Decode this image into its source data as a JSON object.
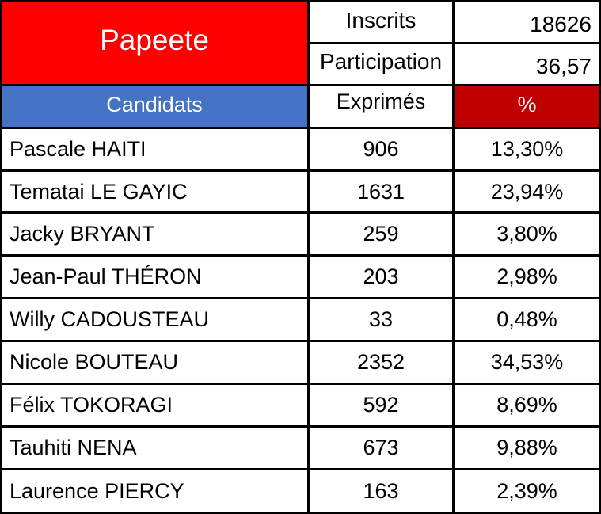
{
  "header": {
    "city": "Papeete",
    "inscrits_label": "Inscrits",
    "inscrits_value": "18626",
    "participation_label": "Participation",
    "participation_value": "36,57"
  },
  "columns": {
    "candidats": "Candidats",
    "exprimes": "Exprimés",
    "percent": "%"
  },
  "rows": [
    {
      "name": "Pascale HAITI",
      "exprimes": "906",
      "percent": "13,30%"
    },
    {
      "name": "Tematai LE GAYIC",
      "exprimes": "1631",
      "percent": "23,94%"
    },
    {
      "name": "Jacky BRYANT",
      "exprimes": "259",
      "percent": "3,80%"
    },
    {
      "name": "Jean-Paul THÉRON",
      "exprimes": "203",
      "percent": "2,98%"
    },
    {
      "name": "Willy CADOUSTEAU",
      "exprimes": "33",
      "percent": "0,48%"
    },
    {
      "name": "Nicole BOUTEAU",
      "exprimes": "2352",
      "percent": "34,53%"
    },
    {
      "name": "Félix TOKORAGI",
      "exprimes": "592",
      "percent": "8,69%"
    },
    {
      "name": "Tauhiti NENA",
      "exprimes": "673",
      "percent": "9,88%"
    },
    {
      "name": "Laurence PIERCY",
      "exprimes": "163",
      "percent": "2,39%"
    }
  ],
  "colors": {
    "title_bg": "#ff0000",
    "candidats_bg": "#4472c4",
    "percent_bg": "#c00000",
    "grid": "#000000"
  }
}
